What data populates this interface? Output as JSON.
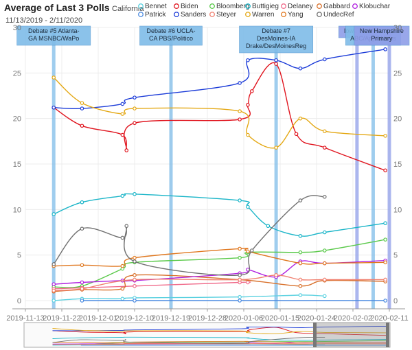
{
  "title": "Average of Last 3 Polls",
  "region": "California",
  "date_range": "11/13/2019 - 2/11/2020",
  "chart_data": {
    "type": "line",
    "title": "Average of Last 3 Polls",
    "subtitle": "California",
    "x_ticks": [
      "2019-11-13",
      "2019-11-22",
      "2019-12-01",
      "2019-12-10",
      "2019-12-19",
      "2019-12-28",
      "2020-01-06",
      "2020-01-15",
      "2020-01-24",
      "2020-02-02",
      "2020-02-11"
    ],
    "xlim": [
      "2019-11-13",
      "2020-02-11"
    ],
    "ylim": [
      0,
      30
    ],
    "y_ticks": [
      0,
      5,
      10,
      15,
      20,
      25,
      30
    ],
    "grid": true,
    "legend_position": "top",
    "series": [
      {
        "name": "Bennet",
        "color": "#5bd1e0",
        "points": [
          [
            "2019-11-20",
            0.0
          ],
          [
            "2019-11-27",
            0.2
          ],
          [
            "2019-12-07",
            0.2
          ],
          [
            "2019-12-10",
            0.3
          ],
          [
            "2020-01-05",
            0.4
          ],
          [
            "2020-01-20",
            0.6
          ],
          [
            "2020-01-26",
            0.5
          ]
        ]
      },
      {
        "name": "Biden",
        "color": "#e0141e",
        "points": [
          [
            "2019-11-20",
            21.2
          ],
          [
            "2019-11-27",
            19.2
          ],
          [
            "2019-12-07",
            18.2
          ],
          [
            "2019-12-08",
            16.5
          ],
          [
            "2019-12-10",
            19.5
          ],
          [
            "2020-01-05",
            19.9
          ],
          [
            "2020-01-07",
            21.5
          ],
          [
            "2020-01-08",
            23.0
          ],
          [
            "2020-01-14",
            26.0
          ],
          [
            "2020-01-19",
            18.3
          ],
          [
            "2020-01-26",
            16.8
          ],
          [
            "2020-02-10",
            14.3
          ]
        ]
      },
      {
        "name": "Bloomberg",
        "color": "#5ac94a",
        "points": [
          [
            "2019-11-20",
            1.5
          ],
          [
            "2019-11-27",
            1.6
          ],
          [
            "2019-12-07",
            3.5
          ],
          [
            "2019-12-10",
            4.2
          ],
          [
            "2020-01-05",
            4.7
          ],
          [
            "2020-01-07",
            5.3
          ],
          [
            "2020-01-20",
            5.3
          ],
          [
            "2020-01-26",
            5.5
          ],
          [
            "2020-02-10",
            6.7
          ]
        ]
      },
      {
        "name": "Buttigieg",
        "color": "#1ab5c8",
        "points": [
          [
            "2019-11-20",
            9.5
          ],
          [
            "2019-11-27",
            10.8
          ],
          [
            "2019-12-07",
            11.5
          ],
          [
            "2019-12-10",
            11.7
          ],
          [
            "2020-01-05",
            11.0
          ],
          [
            "2020-01-07",
            10.3
          ],
          [
            "2020-01-12",
            8.2
          ],
          [
            "2020-01-20",
            7.1
          ],
          [
            "2020-01-26",
            7.5
          ],
          [
            "2020-02-10",
            8.5
          ]
        ]
      },
      {
        "name": "Delaney",
        "color": "#f06a8a",
        "points": [
          [
            "2019-11-20",
            1.3
          ],
          [
            "2019-11-27",
            1.4
          ],
          [
            "2019-12-10",
            1.6
          ],
          [
            "2020-01-05",
            2.0
          ],
          [
            "2020-01-07",
            2.0
          ]
        ]
      },
      {
        "name": "Gabbard",
        "color": "#d8702a",
        "points": [
          [
            "2019-11-20",
            1.0
          ],
          [
            "2019-11-27",
            1.2
          ],
          [
            "2019-12-07",
            1.3
          ],
          [
            "2019-12-10",
            2.8
          ],
          [
            "2020-01-05",
            2.3
          ],
          [
            "2020-01-20",
            1.6
          ],
          [
            "2020-01-26",
            2.2
          ],
          [
            "2020-02-10",
            2.1
          ]
        ]
      },
      {
        "name": "Klobuchar",
        "color": "#b020e0",
        "points": [
          [
            "2019-11-20",
            1.8
          ],
          [
            "2019-11-27",
            2.0
          ],
          [
            "2019-12-07",
            2.2
          ],
          [
            "2019-12-10",
            2.2
          ],
          [
            "2020-01-05",
            3.0
          ],
          [
            "2020-01-07",
            3.4
          ],
          [
            "2020-01-14",
            2.6
          ],
          [
            "2020-01-20",
            4.3
          ],
          [
            "2020-01-26",
            4.1
          ],
          [
            "2020-02-10",
            4.4
          ]
        ]
      },
      {
        "name": "Patrick",
        "color": "#4a8ae0",
        "points": [
          [
            "2019-11-27",
            0.0
          ],
          [
            "2019-12-10",
            0.0
          ],
          [
            "2020-01-05",
            0.0
          ],
          [
            "2020-02-10",
            0.0
          ]
        ]
      },
      {
        "name": "Sanders",
        "color": "#1b3bd8",
        "points": [
          [
            "2019-11-20",
            21.2
          ],
          [
            "2019-11-27",
            21.1
          ],
          [
            "2019-12-07",
            21.6
          ],
          [
            "2019-12-10",
            22.3
          ],
          [
            "2020-01-05",
            23.9
          ],
          [
            "2020-01-07",
            26.4
          ],
          [
            "2020-01-14",
            26.4
          ],
          [
            "2020-01-20",
            25.5
          ],
          [
            "2020-01-26",
            26.5
          ],
          [
            "2020-02-10",
            27.6
          ]
        ]
      },
      {
        "name": "Steyer",
        "color": "#f08070",
        "points": [
          [
            "2019-11-20",
            1.1
          ],
          [
            "2019-11-27",
            1.3
          ],
          [
            "2019-12-10",
            2.3
          ],
          [
            "2020-01-05",
            2.3
          ],
          [
            "2020-01-14",
            2.8
          ],
          [
            "2020-01-20",
            2.3
          ],
          [
            "2020-01-26",
            2.3
          ],
          [
            "2020-02-10",
            2.3
          ]
        ]
      },
      {
        "name": "Warren",
        "color": "#e4a814",
        "points": [
          [
            "2019-11-20",
            24.5
          ],
          [
            "2019-11-27",
            21.7
          ],
          [
            "2019-12-07",
            20.5
          ],
          [
            "2019-12-10",
            21.1
          ],
          [
            "2020-01-05",
            20.8
          ],
          [
            "2020-01-07",
            18.2
          ],
          [
            "2020-01-14",
            16.8
          ],
          [
            "2020-01-20",
            20.0
          ],
          [
            "2020-01-26",
            18.6
          ],
          [
            "2020-02-10",
            18.1
          ]
        ]
      },
      {
        "name": "Yang",
        "color": "#e07820",
        "points": [
          [
            "2019-11-20",
            3.8
          ],
          [
            "2019-11-27",
            3.9
          ],
          [
            "2019-12-07",
            3.8
          ],
          [
            "2019-12-10",
            4.7
          ],
          [
            "2020-01-05",
            5.7
          ],
          [
            "2020-01-07",
            5.4
          ],
          [
            "2020-01-20",
            4.1
          ],
          [
            "2020-01-26",
            4.1
          ],
          [
            "2020-02-10",
            4.2
          ]
        ]
      },
      {
        "name": "UndecRef",
        "color": "#707070",
        "points": [
          [
            "2019-11-20",
            4.0
          ],
          [
            "2019-11-27",
            7.9
          ],
          [
            "2019-12-07",
            6.9
          ],
          [
            "2019-12-08",
            8.2
          ],
          [
            "2019-12-10",
            4.3
          ],
          [
            "2020-01-05",
            2.8
          ],
          [
            "2020-01-08",
            5.5
          ],
          [
            "2020-01-20",
            11.0
          ],
          [
            "2020-01-26",
            11.4
          ]
        ]
      }
    ],
    "events": [
      {
        "date": "2019-11-20",
        "lines": [
          "Debate #5 Atlanta-",
          "GA MSNBC/WaPo"
        ],
        "color": "#7fbce8"
      },
      {
        "date": "2019-12-19",
        "lines": [
          "Debate #6 UCLA-",
          "CA PBS/Politico"
        ],
        "color": "#7fbce8"
      },
      {
        "date": "2020-01-14",
        "lines": [
          "Debate #7",
          "DesMoines-IA",
          "Drake/DesMoinesReg"
        ],
        "color": "#7fbce8"
      },
      {
        "date": "2020-02-03",
        "lines": [
          "Iowa Cau"
        ],
        "color": "#8f9ee8"
      },
      {
        "date": "2020-02-07",
        "lines": [
          "Ma",
          "ABC/AppleNews"
        ],
        "color": "#7fbce8"
      },
      {
        "date": "2020-02-11",
        "lines": [
          "New Hampshire",
          "Primary"
        ],
        "color": "#8f9ee8"
      }
    ]
  }
}
